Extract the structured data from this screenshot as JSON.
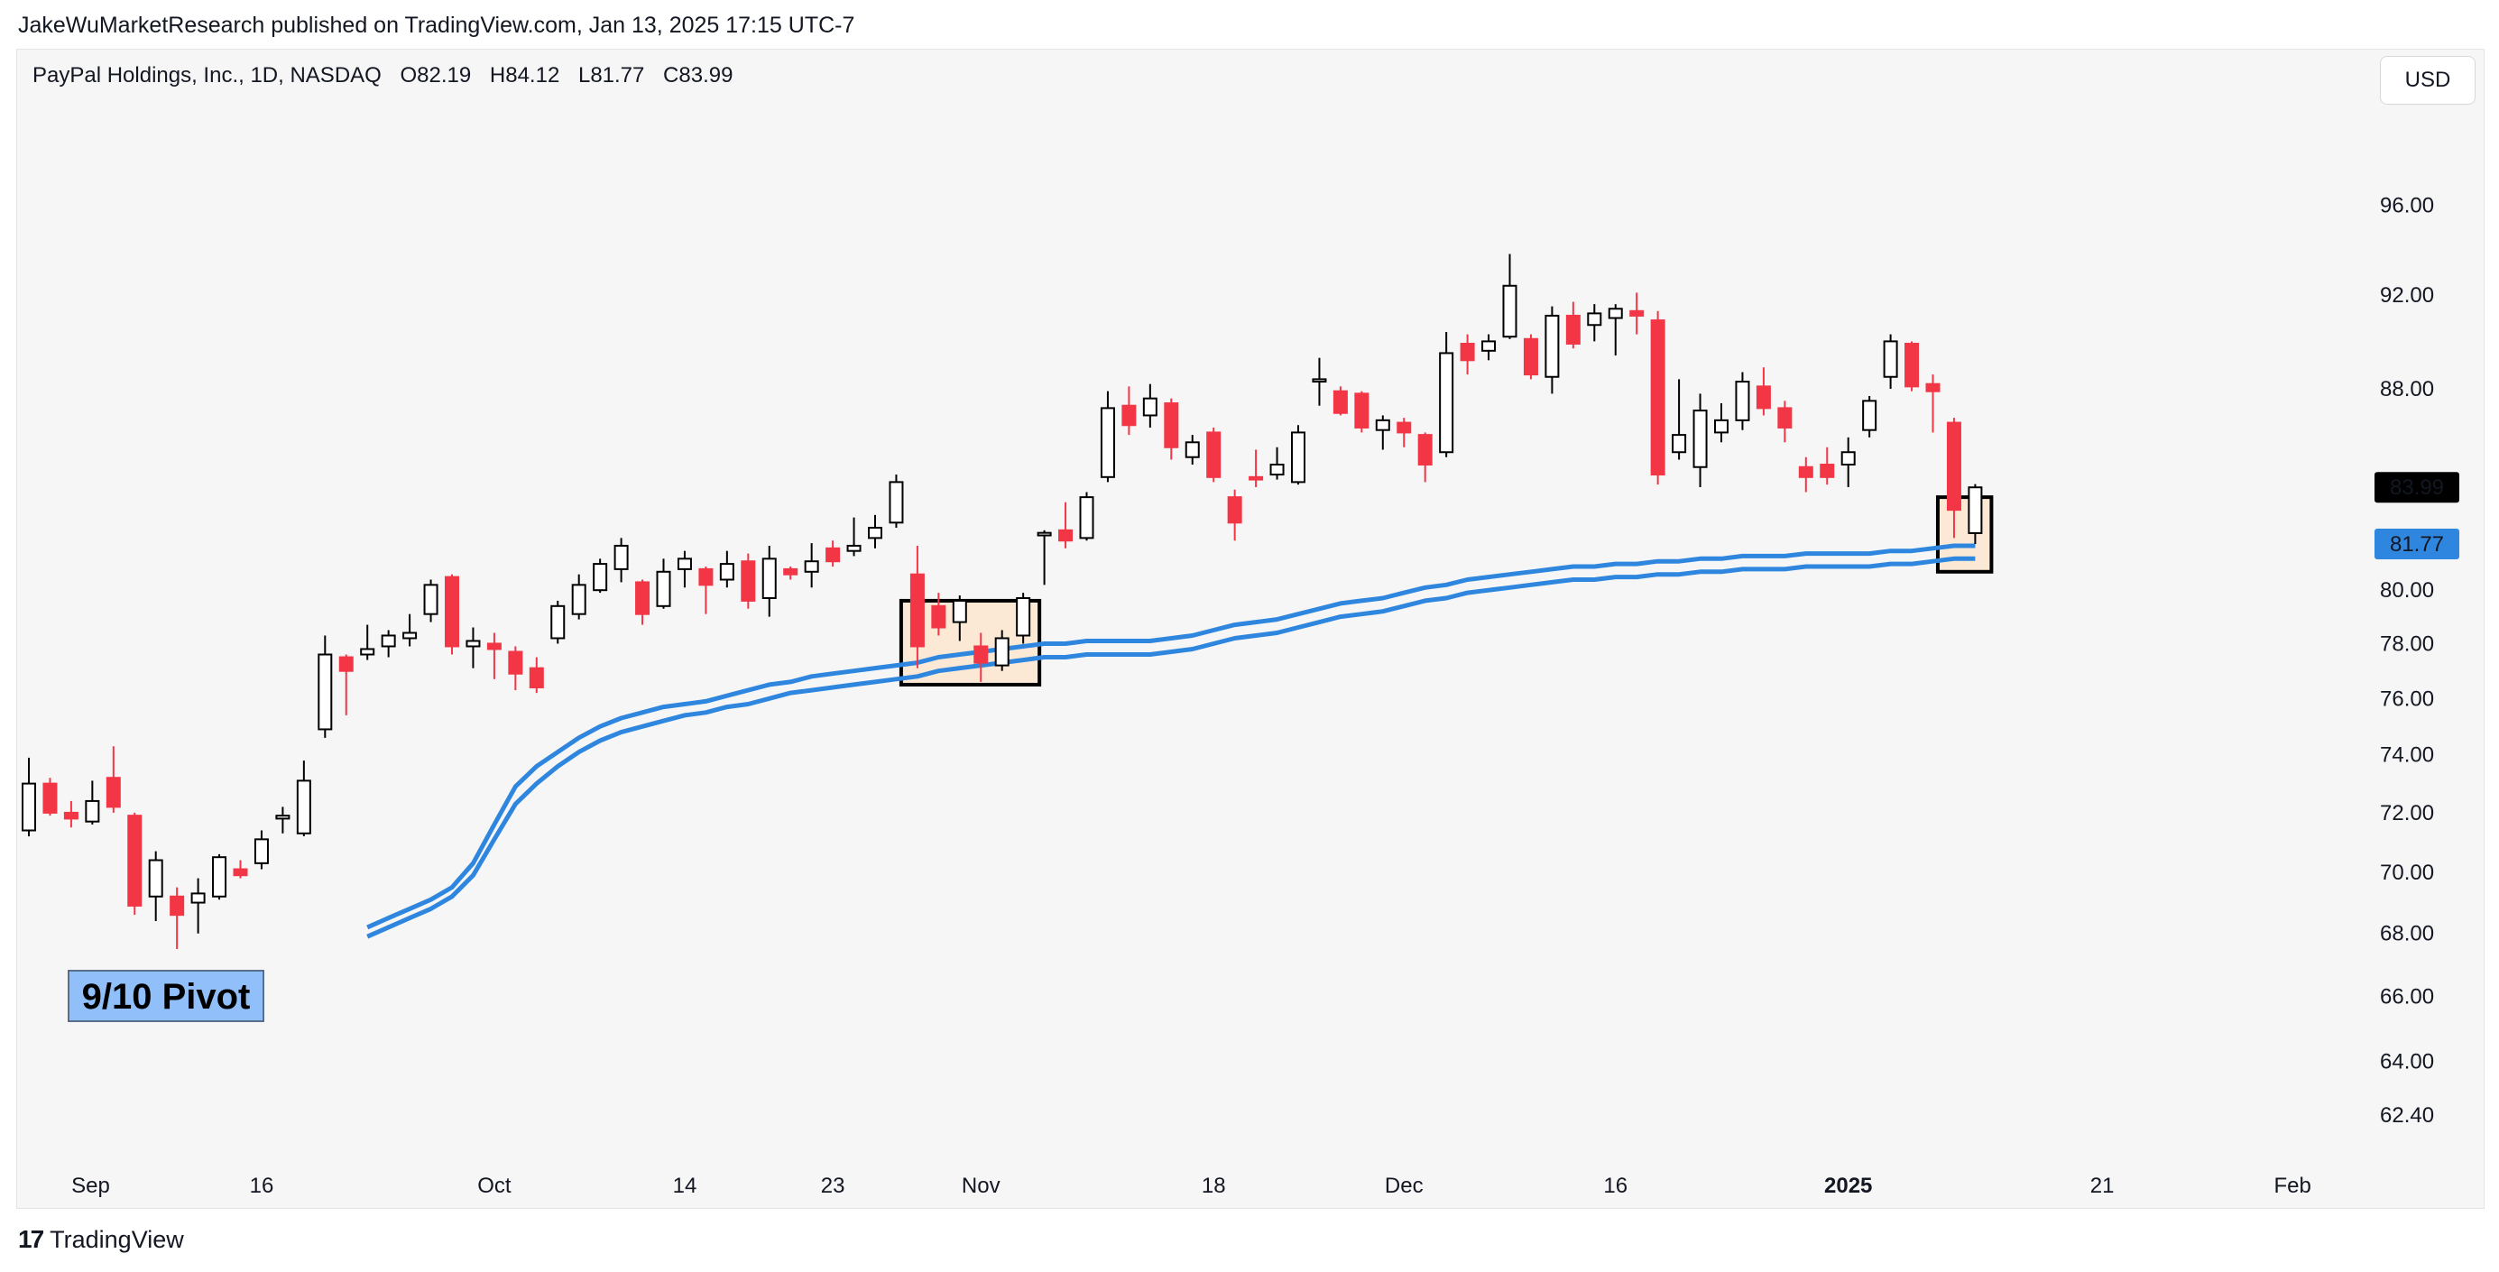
{
  "header": {
    "publisher_line": "JakeWuMarketResearch published on TradingView.com, Jan 13, 2025 17:15 UTC-7"
  },
  "legend": {
    "symbol": "PayPal Holdings, Inc., 1D, NASDAQ",
    "open": "O82.19",
    "high": "H84.12",
    "low": "L81.77",
    "close": "C83.99"
  },
  "currency": "USD",
  "footer": {
    "logo_text": "TradingView"
  },
  "colors": {
    "up_candle": "#000000",
    "down_candle": "#f23645",
    "moving_average": "#2f86de",
    "highlight_box": "#fbe9d6",
    "price_label_bg": "#000000",
    "ma_label_bg": "#2f86de",
    "annotation_bg": "#90bff9"
  },
  "chart_data": {
    "type": "candlestick",
    "title": "PayPal Holdings, Inc., 1D, NASDAQ",
    "y_axis": {
      "scale": "log",
      "ticks": [
        62.4,
        64.0,
        66.0,
        68.0,
        70.0,
        72.0,
        74.0,
        76.0,
        78.0,
        80.0,
        84.0,
        88.0,
        92.0,
        96.0
      ],
      "tick_labels": [
        "62.40",
        "64.00",
        "66.00",
        "68.00",
        "70.00",
        "72.00",
        "74.00",
        "76.00",
        "78.00",
        "80.00",
        "84.00",
        "88.00",
        "92.00",
        "96.00"
      ],
      "range": [
        61.5,
        100.5
      ]
    },
    "x_axis": {
      "labels": [
        {
          "label": "Sep",
          "date": "2024-09-01"
        },
        {
          "label": "16",
          "date": "2024-09-16"
        },
        {
          "label": "Oct",
          "date": "2024-10-01"
        },
        {
          "label": "14",
          "date": "2024-10-14"
        },
        {
          "label": "23",
          "date": "2024-10-23"
        },
        {
          "label": "Nov",
          "date": "2024-11-01"
        },
        {
          "label": "18",
          "date": "2024-11-18"
        },
        {
          "label": "Dec",
          "date": "2024-12-02"
        },
        {
          "label": "16",
          "date": "2024-12-16"
        },
        {
          "label": "2025",
          "date": "2025-01-01",
          "bold": true
        },
        {
          "label": "21",
          "date": "2025-01-21"
        },
        {
          "label": "Feb",
          "date": "2025-02-03"
        }
      ]
    },
    "grid": false,
    "candles": [
      {
        "date": "2024-08-29",
        "o": 71.4,
        "h": 73.9,
        "l": 71.2,
        "c": 73.0
      },
      {
        "date": "2024-08-30",
        "o": 73.0,
        "h": 73.2,
        "l": 71.9,
        "c": 72.0
      },
      {
        "date": "2024-09-03",
        "o": 72.0,
        "h": 72.4,
        "l": 71.5,
        "c": 71.8
      },
      {
        "date": "2024-09-04",
        "o": 71.7,
        "h": 73.1,
        "l": 71.6,
        "c": 72.4
      },
      {
        "date": "2024-09-05",
        "o": 73.2,
        "h": 74.3,
        "l": 72.0,
        "c": 72.2
      },
      {
        "date": "2024-09-06",
        "o": 71.9,
        "h": 72.0,
        "l": 68.6,
        "c": 68.9
      },
      {
        "date": "2024-09-09",
        "o": 69.2,
        "h": 70.7,
        "l": 68.4,
        "c": 70.4
      },
      {
        "date": "2024-09-10",
        "o": 69.2,
        "h": 69.5,
        "l": 67.5,
        "c": 68.6
      },
      {
        "date": "2024-09-11",
        "o": 69.0,
        "h": 69.8,
        "l": 68.0,
        "c": 69.3
      },
      {
        "date": "2024-09-12",
        "o": 69.2,
        "h": 70.6,
        "l": 69.1,
        "c": 70.5
      },
      {
        "date": "2024-09-13",
        "o": 70.1,
        "h": 70.4,
        "l": 69.8,
        "c": 69.9
      },
      {
        "date": "2024-09-16",
        "o": 70.3,
        "h": 71.4,
        "l": 70.1,
        "c": 71.1
      },
      {
        "date": "2024-09-17",
        "o": 71.8,
        "h": 72.2,
        "l": 71.3,
        "c": 71.9
      },
      {
        "date": "2024-09-18",
        "o": 71.3,
        "h": 73.8,
        "l": 71.2,
        "c": 73.1
      },
      {
        "date": "2024-09-19",
        "o": 74.9,
        "h": 78.3,
        "l": 74.6,
        "c": 77.6
      },
      {
        "date": "2024-09-20",
        "o": 77.5,
        "h": 77.6,
        "l": 75.4,
        "c": 77.0
      },
      {
        "date": "2024-09-23",
        "o": 77.6,
        "h": 78.7,
        "l": 77.4,
        "c": 77.8
      },
      {
        "date": "2024-09-24",
        "o": 77.9,
        "h": 78.5,
        "l": 77.5,
        "c": 78.3
      },
      {
        "date": "2024-09-25",
        "o": 78.2,
        "h": 79.1,
        "l": 77.9,
        "c": 78.4
      },
      {
        "date": "2024-09-26",
        "o": 79.1,
        "h": 80.4,
        "l": 78.8,
        "c": 80.2
      },
      {
        "date": "2024-09-27",
        "o": 80.5,
        "h": 80.6,
        "l": 77.6,
        "c": 77.9
      },
      {
        "date": "2024-09-30",
        "o": 77.9,
        "h": 78.6,
        "l": 77.1,
        "c": 78.1
      },
      {
        "date": "2024-10-01",
        "o": 78.0,
        "h": 78.4,
        "l": 76.7,
        "c": 77.8
      },
      {
        "date": "2024-10-02",
        "o": 77.7,
        "h": 77.9,
        "l": 76.3,
        "c": 76.9
      },
      {
        "date": "2024-10-03",
        "o": 77.1,
        "h": 77.5,
        "l": 76.2,
        "c": 76.4
      },
      {
        "date": "2024-10-04",
        "o": 78.2,
        "h": 79.6,
        "l": 78.0,
        "c": 79.4
      },
      {
        "date": "2024-10-07",
        "o": 79.1,
        "h": 80.6,
        "l": 78.9,
        "c": 80.2
      },
      {
        "date": "2024-10-08",
        "o": 80.0,
        "h": 81.2,
        "l": 79.9,
        "c": 81.0
      },
      {
        "date": "2024-10-09",
        "o": 80.8,
        "h": 82.0,
        "l": 80.3,
        "c": 81.7
      },
      {
        "date": "2024-10-10",
        "o": 80.3,
        "h": 80.4,
        "l": 78.7,
        "c": 79.1
      },
      {
        "date": "2024-10-11",
        "o": 79.4,
        "h": 81.2,
        "l": 79.3,
        "c": 80.7
      },
      {
        "date": "2024-10-14",
        "o": 80.8,
        "h": 81.5,
        "l": 80.1,
        "c": 81.2
      },
      {
        "date": "2024-10-15",
        "o": 80.8,
        "h": 80.9,
        "l": 79.1,
        "c": 80.2
      },
      {
        "date": "2024-10-16",
        "o": 80.4,
        "h": 81.5,
        "l": 80.1,
        "c": 81.0
      },
      {
        "date": "2024-10-17",
        "o": 81.1,
        "h": 81.4,
        "l": 79.3,
        "c": 79.6
      },
      {
        "date": "2024-10-18",
        "o": 79.7,
        "h": 81.7,
        "l": 79.0,
        "c": 81.2
      },
      {
        "date": "2024-10-21",
        "o": 80.8,
        "h": 80.9,
        "l": 80.4,
        "c": 80.6
      },
      {
        "date": "2024-10-22",
        "o": 80.7,
        "h": 81.8,
        "l": 80.1,
        "c": 81.1
      },
      {
        "date": "2024-10-23",
        "o": 81.6,
        "h": 81.9,
        "l": 80.9,
        "c": 81.1
      },
      {
        "date": "2024-10-24",
        "o": 81.5,
        "h": 82.8,
        "l": 81.3,
        "c": 81.7
      },
      {
        "date": "2024-10-25",
        "o": 82.0,
        "h": 82.9,
        "l": 81.6,
        "c": 82.4
      },
      {
        "date": "2024-10-28",
        "o": 82.6,
        "h": 84.5,
        "l": 82.4,
        "c": 84.2
      },
      {
        "date": "2024-10-29",
        "o": 80.6,
        "h": 81.7,
        "l": 77.1,
        "c": 77.9
      },
      {
        "date": "2024-10-30",
        "o": 79.4,
        "h": 79.9,
        "l": 78.3,
        "c": 78.6
      },
      {
        "date": "2024-10-31",
        "o": 78.8,
        "h": 79.8,
        "l": 78.1,
        "c": 79.6
      },
      {
        "date": "2024-11-01",
        "o": 77.9,
        "h": 78.4,
        "l": 76.6,
        "c": 77.3
      },
      {
        "date": "2024-11-04",
        "o": 77.2,
        "h": 78.5,
        "l": 77.0,
        "c": 78.2
      },
      {
        "date": "2024-11-05",
        "o": 78.3,
        "h": 79.9,
        "l": 78.0,
        "c": 79.7
      },
      {
        "date": "2024-11-06",
        "o": 82.1,
        "h": 82.3,
        "l": 80.2,
        "c": 82.2
      },
      {
        "date": "2024-11-07",
        "o": 82.3,
        "h": 83.4,
        "l": 81.6,
        "c": 81.9
      },
      {
        "date": "2024-11-08",
        "o": 82.0,
        "h": 83.8,
        "l": 81.9,
        "c": 83.6
      },
      {
        "date": "2024-11-11",
        "o": 84.4,
        "h": 87.9,
        "l": 84.2,
        "c": 87.2
      },
      {
        "date": "2024-11-12",
        "o": 87.3,
        "h": 88.1,
        "l": 86.1,
        "c": 86.5
      },
      {
        "date": "2024-11-13",
        "o": 86.9,
        "h": 88.2,
        "l": 86.4,
        "c": 87.6
      },
      {
        "date": "2024-11-14",
        "o": 87.4,
        "h": 87.6,
        "l": 85.1,
        "c": 85.6
      },
      {
        "date": "2024-11-15",
        "o": 85.2,
        "h": 86.1,
        "l": 84.9,
        "c": 85.8
      },
      {
        "date": "2024-11-18",
        "o": 86.2,
        "h": 86.4,
        "l": 84.2,
        "c": 84.4
      },
      {
        "date": "2024-11-19",
        "o": 83.6,
        "h": 83.9,
        "l": 81.9,
        "c": 82.6
      },
      {
        "date": "2024-11-20",
        "o": 84.4,
        "h": 85.5,
        "l": 84.0,
        "c": 84.3
      },
      {
        "date": "2024-11-21",
        "o": 84.5,
        "h": 85.6,
        "l": 84.3,
        "c": 84.9
      },
      {
        "date": "2024-11-22",
        "o": 84.2,
        "h": 86.5,
        "l": 84.1,
        "c": 86.2
      },
      {
        "date": "2024-11-25",
        "o": 88.3,
        "h": 89.3,
        "l": 87.3,
        "c": 88.4
      },
      {
        "date": "2024-11-26",
        "o": 87.9,
        "h": 88.1,
        "l": 86.9,
        "c": 87.0
      },
      {
        "date": "2024-11-27",
        "o": 87.8,
        "h": 87.9,
        "l": 86.2,
        "c": 86.4
      },
      {
        "date": "2024-11-29",
        "o": 86.3,
        "h": 86.9,
        "l": 85.5,
        "c": 86.7
      },
      {
        "date": "2024-12-02",
        "o": 86.6,
        "h": 86.8,
        "l": 85.6,
        "c": 86.2
      },
      {
        "date": "2024-12-03",
        "o": 86.1,
        "h": 86.2,
        "l": 84.2,
        "c": 84.9
      },
      {
        "date": "2024-12-04",
        "o": 85.4,
        "h": 90.4,
        "l": 85.2,
        "c": 89.5
      },
      {
        "date": "2024-12-05",
        "o": 89.9,
        "h": 90.3,
        "l": 88.6,
        "c": 89.2
      },
      {
        "date": "2024-12-06",
        "o": 89.6,
        "h": 90.3,
        "l": 89.2,
        "c": 90.0
      },
      {
        "date": "2024-12-09",
        "o": 90.2,
        "h": 93.8,
        "l": 90.1,
        "c": 92.4
      },
      {
        "date": "2024-12-10",
        "o": 90.1,
        "h": 90.3,
        "l": 88.4,
        "c": 88.6
      },
      {
        "date": "2024-12-11",
        "o": 88.5,
        "h": 91.5,
        "l": 87.8,
        "c": 91.1
      },
      {
        "date": "2024-12-12",
        "o": 91.1,
        "h": 91.7,
        "l": 89.7,
        "c": 89.9
      },
      {
        "date": "2024-12-13",
        "o": 90.7,
        "h": 91.6,
        "l": 90.0,
        "c": 91.2
      },
      {
        "date": "2024-12-16",
        "o": 91.0,
        "h": 91.6,
        "l": 89.4,
        "c": 91.4
      },
      {
        "date": "2024-12-17",
        "o": 91.3,
        "h": 92.1,
        "l": 90.3,
        "c": 91.1
      },
      {
        "date": "2024-12-18",
        "o": 90.9,
        "h": 91.3,
        "l": 84.1,
        "c": 84.5
      },
      {
        "date": "2024-12-19",
        "o": 85.4,
        "h": 88.4,
        "l": 85.1,
        "c": 86.1
      },
      {
        "date": "2024-12-20",
        "o": 84.8,
        "h": 87.8,
        "l": 84.0,
        "c": 87.1
      },
      {
        "date": "2024-12-23",
        "o": 86.2,
        "h": 87.4,
        "l": 85.8,
        "c": 86.7
      },
      {
        "date": "2024-12-24",
        "o": 86.7,
        "h": 88.7,
        "l": 86.3,
        "c": 88.3
      },
      {
        "date": "2024-12-26",
        "o": 88.1,
        "h": 88.9,
        "l": 86.9,
        "c": 87.2
      },
      {
        "date": "2024-12-27",
        "o": 87.2,
        "h": 87.5,
        "l": 85.8,
        "c": 86.4
      },
      {
        "date": "2024-12-30",
        "o": 84.8,
        "h": 85.2,
        "l": 83.8,
        "c": 84.4
      },
      {
        "date": "2024-12-31",
        "o": 84.9,
        "h": 85.6,
        "l": 84.1,
        "c": 84.4
      },
      {
        "date": "2025-01-02",
        "o": 84.9,
        "h": 86.0,
        "l": 84.0,
        "c": 85.4
      },
      {
        "date": "2025-01-03",
        "o": 86.3,
        "h": 87.7,
        "l": 86.0,
        "c": 87.5
      },
      {
        "date": "2025-01-06",
        "o": 88.5,
        "h": 90.3,
        "l": 88.0,
        "c": 90.0
      },
      {
        "date": "2025-01-07",
        "o": 89.9,
        "h": 90.0,
        "l": 87.9,
        "c": 88.1
      },
      {
        "date": "2025-01-08",
        "o": 88.2,
        "h": 88.6,
        "l": 86.2,
        "c": 87.9
      },
      {
        "date": "2025-01-10",
        "o": 86.6,
        "h": 86.8,
        "l": 82.0,
        "c": 83.1
      },
      {
        "date": "2025-01-13",
        "o": 82.19,
        "h": 84.12,
        "l": 81.77,
        "c": 83.99
      }
    ],
    "series": [
      {
        "type": "moving_average",
        "values": [
          68.2,
          68.5,
          68.8,
          69.1,
          69.5,
          70.3,
          71.6,
          72.9,
          73.6,
          74.1,
          74.6,
          75.0,
          75.3,
          75.5,
          75.7,
          75.8,
          75.9,
          76.1,
          76.3,
          76.5,
          76.6,
          76.8,
          76.9,
          77.0,
          77.1,
          77.2,
          77.3,
          77.5,
          77.6,
          77.7,
          77.8,
          77.9,
          78.0,
          78.0,
          78.1,
          78.1,
          78.1,
          78.1,
          78.2,
          78.3,
          78.5,
          78.7,
          78.8,
          78.9,
          79.1,
          79.3,
          79.5,
          79.6,
          79.7,
          79.9,
          80.1,
          80.2,
          80.4,
          80.5,
          80.6,
          80.7,
          80.8,
          80.9,
          80.9,
          81.0,
          81.0,
          81.1,
          81.1,
          81.2,
          81.2,
          81.3,
          81.3,
          81.3,
          81.4,
          81.4,
          81.4,
          81.4,
          81.5,
          81.5,
          81.6,
          81.7,
          81.7
        ]
      },
      {
        "type": "moving_average",
        "values": [
          67.9,
          68.2,
          68.5,
          68.8,
          69.2,
          69.9,
          71.1,
          72.3,
          73.0,
          73.6,
          74.1,
          74.5,
          74.8,
          75.0,
          75.2,
          75.4,
          75.5,
          75.7,
          75.8,
          76.0,
          76.2,
          76.3,
          76.4,
          76.5,
          76.6,
          76.7,
          76.8,
          77.0,
          77.1,
          77.2,
          77.3,
          77.4,
          77.5,
          77.5,
          77.6,
          77.6,
          77.6,
          77.6,
          77.7,
          77.8,
          78.0,
          78.2,
          78.3,
          78.4,
          78.6,
          78.8,
          79.0,
          79.1,
          79.2,
          79.4,
          79.6,
          79.7,
          79.9,
          80.0,
          80.1,
          80.2,
          80.3,
          80.4,
          80.4,
          80.5,
          80.5,
          80.6,
          80.6,
          80.7,
          80.7,
          80.8,
          80.8,
          80.8,
          80.9,
          80.9,
          80.9,
          80.9,
          81.0,
          81.0,
          81.1,
          81.2,
          81.2
        ]
      }
    ],
    "price_labels": [
      {
        "value": 83.99,
        "text": "83.99",
        "style": "last-price"
      },
      {
        "value": 81.77,
        "text": "81.77",
        "style": "moving-average"
      }
    ],
    "annotations": [
      {
        "type": "label",
        "text": "9/10 Pivot"
      },
      {
        "type": "box",
        "from": "2024-10-29",
        "to": "2024-11-05",
        "high": 79.6,
        "low": 76.5
      },
      {
        "type": "box",
        "from": "2025-01-10",
        "to": "2025-01-13",
        "high": 83.6,
        "low": 80.7
      }
    ]
  }
}
